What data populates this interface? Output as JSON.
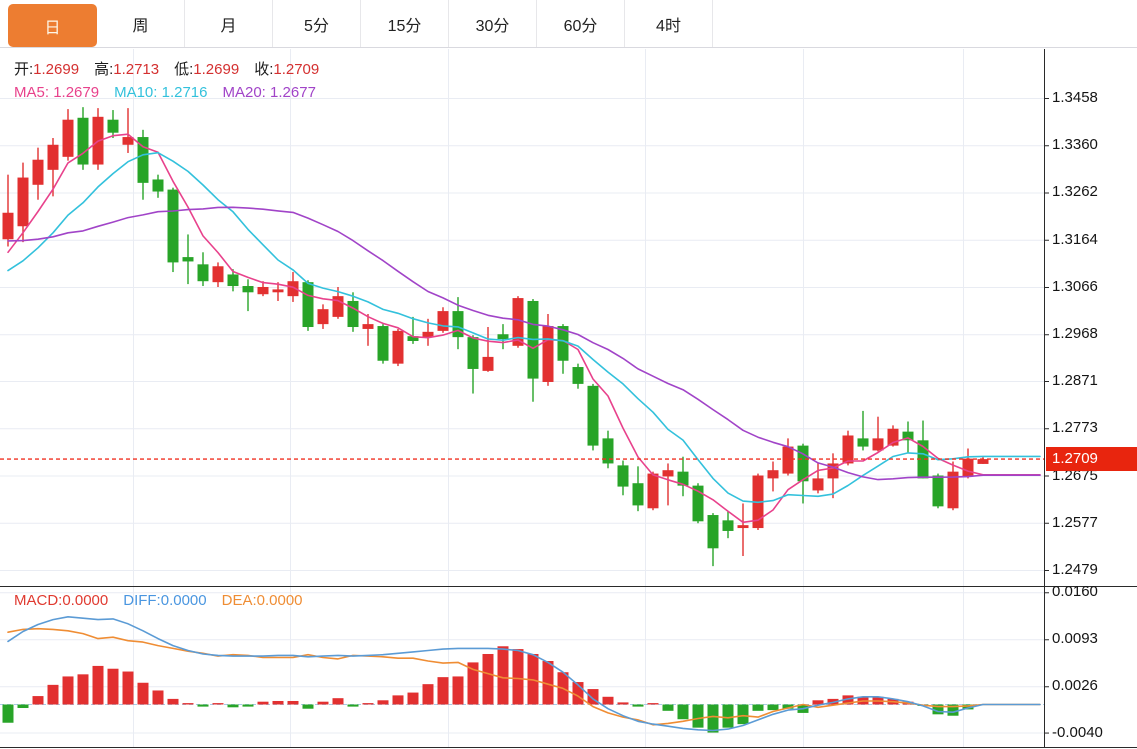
{
  "tabs": {
    "items": [
      {
        "name": "tab-day",
        "label": "日",
        "selected": true
      },
      {
        "name": "tab-week",
        "label": "周",
        "selected": false
      },
      {
        "name": "tab-month",
        "label": "月",
        "selected": false
      },
      {
        "name": "tab-5min",
        "label": "5分",
        "selected": false
      },
      {
        "name": "tab-15min",
        "label": "15分",
        "selected": false
      },
      {
        "name": "tab-30min",
        "label": "30分",
        "selected": false
      },
      {
        "name": "tab-60min",
        "label": "60分",
        "selected": false
      },
      {
        "name": "tab-4hour",
        "label": "4时",
        "selected": false
      }
    ]
  },
  "legend": {
    "open_label": "开:",
    "open": "1.2699",
    "high_label": "高:",
    "high": "1.2713",
    "low_label": "低:",
    "low": "1.2699",
    "close_label": "收:",
    "close": "1.2709",
    "ma5_label": "MA5:",
    "ma5": "1.2679",
    "ma10_label": "MA10:",
    "ma10": "1.2716",
    "ma20_label": "MA20:",
    "ma20": "1.2677"
  },
  "macd_legend": {
    "macd_label": "MACD:",
    "macd": "0.0000",
    "diff_label": "DIFF:",
    "diff": "0.0000",
    "dea_label": "DEA:",
    "dea": "0.0000"
  },
  "price_tag": {
    "value": "1.2709"
  },
  "colors": {
    "up": "#e23030",
    "down": "#28a428",
    "ma5": "#e8428c",
    "ma10": "#33c1dc",
    "ma20": "#a144c8",
    "diff_line": "#5b9bd5",
    "dea_line": "#ef8d34",
    "tab_accent": "#ED7D31",
    "price_tag_bg": "#e8250e",
    "value_red": "#d43030",
    "legend_macd": "#e03a30",
    "legend_diff": "#4a96e0",
    "legend_dea": "#ef8d34",
    "grid": "#e9ecf3",
    "frame": "#2a2a2a",
    "last_price_line": "#f03022",
    "zero_dash": "#a8cbe8"
  },
  "chart_data": {
    "type": "candlestick",
    "title": "Daily FX candlestick chart with MA5/MA10/MA20 and MACD",
    "legend_position": "top-left",
    "grid": true,
    "main": {
      "y_ticks": [
        "1.3458",
        "1.3360",
        "1.3262",
        "1.3164",
        "1.3066",
        "1.2968",
        "1.2871",
        "1.2773",
        "1.2675",
        "1.2577",
        "1.2479"
      ],
      "last_price": 1.2709,
      "current_ohlc": {
        "open": 1.2699,
        "high": 1.2713,
        "low": 1.2699,
        "close": 1.2709
      },
      "current_ma": {
        "ma5": 1.2679,
        "ma10": 1.2716,
        "ma20": 1.2677
      },
      "ma_periods": [
        5,
        10,
        20
      ],
      "ma_prehistory_closes_estimated": [
        1.328,
        1.328,
        1.327,
        1.326,
        1.325,
        1.324,
        1.323,
        1.321,
        1.319,
        1.317,
        1.313,
        1.309,
        1.306,
        1.305,
        1.3045,
        1.3065,
        1.309,
        1.311,
        1.313,
        1.314
      ],
      "candles_ohlc": [
        [
          1.3165,
          1.3299,
          1.315,
          1.322
        ],
        [
          1.3192,
          1.3324,
          1.3159,
          1.3293
        ],
        [
          1.3278,
          1.3355,
          1.3247,
          1.333
        ],
        [
          1.3309,
          1.3375,
          1.3254,
          1.3361
        ],
        [
          1.3336,
          1.3435,
          1.3328,
          1.3413
        ],
        [
          1.3417,
          1.3439,
          1.3309,
          1.332
        ],
        [
          1.332,
          1.3437,
          1.3309,
          1.3419
        ],
        [
          1.3413,
          1.3433,
          1.3375,
          1.3386
        ],
        [
          1.3361,
          1.3437,
          1.3344,
          1.3377
        ],
        [
          1.3377,
          1.3392,
          1.3247,
          1.3282
        ],
        [
          1.3289,
          1.3299,
          1.3251,
          1.3264
        ],
        [
          1.3268,
          1.3272,
          1.3097,
          1.3117
        ],
        [
          1.3128,
          1.3175,
          1.3072,
          1.3119
        ],
        [
          1.3113,
          1.3138,
          1.3068,
          1.3078
        ],
        [
          1.3076,
          1.3117,
          1.3066,
          1.3109
        ],
        [
          1.3092,
          1.3103,
          1.3057,
          1.3068
        ],
        [
          1.3068,
          1.3082,
          1.3016,
          1.3055
        ],
        [
          1.3051,
          1.3078,
          1.3047,
          1.3066
        ],
        [
          1.3055,
          1.3076,
          1.3037,
          1.3061
        ],
        [
          1.3047,
          1.3097,
          1.3035,
          1.3078
        ],
        [
          1.3076,
          1.308,
          1.2975,
          1.2983
        ],
        [
          1.2989,
          1.303,
          1.2979,
          1.302
        ],
        [
          1.3004,
          1.3066,
          1.3,
          1.3047
        ],
        [
          1.3037,
          1.3055,
          1.2973,
          1.2983
        ],
        [
          1.2979,
          1.301,
          1.2944,
          1.2989
        ],
        [
          1.2985,
          1.2989,
          1.2907,
          1.2913
        ],
        [
          1.2907,
          1.2979,
          1.2902,
          1.2975
        ],
        [
          1.2964,
          1.3004,
          1.2948,
          1.2954
        ],
        [
          1.2962,
          1.3,
          1.2944,
          1.2973
        ],
        [
          1.2975,
          1.3024,
          1.2971,
          1.3016
        ],
        [
          1.3016,
          1.3045,
          1.2937,
          1.2962
        ],
        [
          1.2962,
          1.2966,
          1.2845,
          1.2896
        ],
        [
          1.2892,
          1.2983,
          1.289,
          1.2921
        ],
        [
          1.2968,
          1.2989,
          1.2937,
          1.2958
        ],
        [
          1.2944,
          1.3047,
          1.294,
          1.3043
        ],
        [
          1.3037,
          1.3041,
          1.2828,
          1.2876
        ],
        [
          1.2869,
          1.301,
          1.2861,
          1.2985
        ],
        [
          1.2985,
          1.2989,
          1.2886,
          1.2913
        ],
        [
          1.29,
          1.2907,
          1.2855,
          1.2865
        ],
        [
          1.2861,
          1.2865,
          1.2727,
          1.2737
        ],
        [
          1.2752,
          1.2768,
          1.269,
          1.27
        ],
        [
          1.2696,
          1.2706,
          1.2634,
          1.2652
        ],
        [
          1.2659,
          1.2694,
          1.2601,
          1.2613
        ],
        [
          1.2607,
          1.2683,
          1.2603,
          1.2679
        ],
        [
          1.2673,
          1.27,
          1.2613,
          1.2686
        ],
        [
          1.2683,
          1.2714,
          1.2632,
          1.2654
        ],
        [
          1.2654,
          1.2659,
          1.2576,
          1.258
        ],
        [
          1.2593,
          1.2597,
          1.2487,
          1.2524
        ],
        [
          1.2582,
          1.2601,
          1.2545,
          1.256
        ],
        [
          1.2566,
          1.2617,
          1.2508,
          1.2572
        ],
        [
          1.2566,
          1.2679,
          1.2562,
          1.2675
        ],
        [
          1.2669,
          1.2704,
          1.2642,
          1.2686
        ],
        [
          1.2679,
          1.2752,
          1.2675,
          1.2735
        ],
        [
          1.2737,
          1.2741,
          1.2617,
          1.2663
        ],
        [
          1.2644,
          1.27,
          1.2638,
          1.2669
        ],
        [
          1.2669,
          1.2721,
          1.2628,
          1.27
        ],
        [
          1.27,
          1.2768,
          1.2696,
          1.2758
        ],
        [
          1.2752,
          1.2809,
          1.2727,
          1.2735
        ],
        [
          1.2727,
          1.2797,
          1.2725,
          1.2752
        ],
        [
          1.2737,
          1.2779,
          1.2735,
          1.2772
        ],
        [
          1.2766,
          1.2787,
          1.2721,
          1.2748
        ],
        [
          1.2748,
          1.2789,
          1.2669,
          1.2669
        ],
        [
          1.2675,
          1.2679,
          1.2607,
          1.2611
        ],
        [
          1.2607,
          1.2704,
          1.2603,
          1.2683
        ],
        [
          1.2673,
          1.2731,
          1.2669,
          1.271
        ],
        [
          1.2699,
          1.2713,
          1.2699,
          1.2709
        ]
      ]
    },
    "macd": {
      "y_ticks": [
        "0.0160",
        "0.0093",
        "0.0026",
        "-0.0040"
      ],
      "current": {
        "macd": 0.0,
        "diff": 0.0,
        "dea": 0.0
      },
      "histogram": [
        -0.0026,
        -0.0005,
        0.0012,
        0.0028,
        0.004,
        0.0043,
        0.0055,
        0.0051,
        0.0047,
        0.0031,
        0.002,
        0.0008,
        0.0002,
        -0.0003,
        0.0002,
        -0.0004,
        -0.0003,
        0.0004,
        0.0005,
        0.0005,
        -0.0006,
        0.0004,
        0.0009,
        -0.0003,
        0.0002,
        0.0006,
        0.0013,
        0.0017,
        0.0029,
        0.0039,
        0.004,
        0.006,
        0.0072,
        0.0083,
        0.0079,
        0.0072,
        0.0062,
        0.0046,
        0.0032,
        0.0022,
        0.0011,
        0.0003,
        -0.0003,
        0.0002,
        -0.0009,
        -0.0021,
        -0.0033,
        -0.004,
        -0.0033,
        -0.0028,
        -0.0009,
        -0.0008,
        -0.0006,
        -0.0012,
        0.0006,
        0.0008,
        0.0013,
        0.0011,
        0.0011,
        0.0008,
        0.0004,
        -0.0002,
        -0.0014,
        -0.0016,
        -0.0007,
        0.0
      ],
      "diff": [
        0.009,
        0.0104,
        0.0114,
        0.0121,
        0.0125,
        0.0123,
        0.0121,
        0.0122,
        0.0115,
        0.0105,
        0.0094,
        0.0084,
        0.0077,
        0.0072,
        0.007,
        0.0069,
        0.0069,
        0.0069,
        0.007,
        0.007,
        0.0068,
        0.0069,
        0.007,
        0.0069,
        0.007,
        0.0071,
        0.0073,
        0.0075,
        0.0077,
        0.0079,
        0.008,
        0.008,
        0.008,
        0.0079,
        0.0077,
        0.0071,
        0.006,
        0.0046,
        0.0028,
        0.0008,
        -0.0006,
        -0.0016,
        -0.0024,
        -0.0028,
        -0.0031,
        -0.0034,
        -0.0036,
        -0.0037,
        -0.0035,
        -0.003,
        -0.0022,
        -0.0014,
        -0.0008,
        -0.0006,
        -0.0001,
        0.0003,
        0.0008,
        0.0011,
        0.0011,
        0.0008,
        0.0004,
        -0.0002,
        -0.001,
        -0.0011,
        -0.0005,
        0.0
      ],
      "dea": [
        0.0103,
        0.0107,
        0.0108,
        0.0107,
        0.0105,
        0.0101,
        0.0094,
        0.0096,
        0.0091,
        0.0089,
        0.0084,
        0.008,
        0.0076,
        0.0073,
        0.0069,
        0.0071,
        0.007,
        0.0067,
        0.0067,
        0.0067,
        0.0071,
        0.0067,
        0.0065,
        0.007,
        0.0069,
        0.0068,
        0.0066,
        0.0066,
        0.0062,
        0.0059,
        0.006,
        0.005,
        0.0044,
        0.0038,
        0.0037,
        0.0035,
        0.0029,
        0.0023,
        0.0012,
        -0.0003,
        -0.0012,
        -0.0018,
        -0.0022,
        -0.0029,
        -0.0027,
        -0.0024,
        -0.002,
        -0.0017,
        -0.0019,
        -0.0016,
        -0.0018,
        -0.001,
        -0.0005,
        0.0,
        -0.0004,
        -0.0001,
        0.0002,
        0.0005,
        0.0005,
        0.0004,
        0.0002,
        -0.0001,
        -0.0003,
        -0.0003,
        -0.0002,
        0.0
      ]
    }
  }
}
